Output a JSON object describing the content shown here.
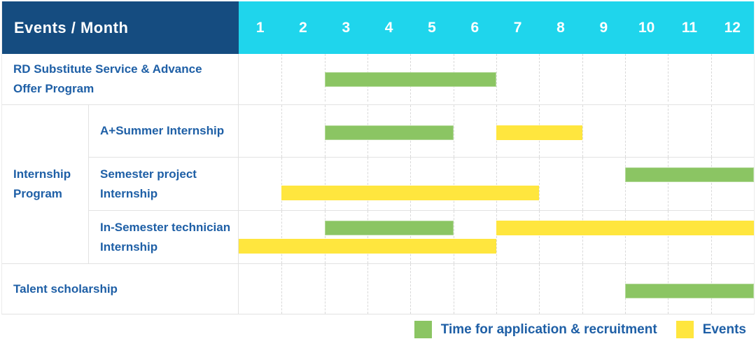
{
  "chart_data": {
    "type": "gantt",
    "title": "Events / Month",
    "months": [
      "1",
      "2",
      "3",
      "4",
      "5",
      "6",
      "7",
      "8",
      "9",
      "10",
      "11",
      "12"
    ],
    "colors": {
      "header_navy": "#154C80",
      "header_cyan": "#1FD5EC",
      "label_text_blue": "#1E5FA6",
      "application_green": "#8BC563",
      "events_yellow": "#FFE63E"
    },
    "legend": [
      {
        "key": "application",
        "label": "Time for application & recruitment",
        "color": "#8BC563"
      },
      {
        "key": "events",
        "label": "Events",
        "color": "#FFE63E"
      }
    ],
    "rows": [
      {
        "label": "RD Substitute Service & Advance Offer Program",
        "group": null,
        "bars": [
          {
            "type": "application",
            "start": 3,
            "end": 6,
            "lane": "mid"
          }
        ]
      },
      {
        "label": "A+Summer Internship",
        "group": "Internship Program",
        "bars": [
          {
            "type": "application",
            "start": 3,
            "end": 5,
            "lane": "mid"
          },
          {
            "type": "events",
            "start": 7,
            "end": 8,
            "lane": "mid"
          }
        ]
      },
      {
        "label": "Semester project Internship",
        "group": "Internship Program",
        "bars": [
          {
            "type": "application",
            "start": 10,
            "end": 12,
            "lane": "top"
          },
          {
            "type": "events",
            "start": 2,
            "end": 7,
            "lane": "bottom"
          }
        ]
      },
      {
        "label": "In-Semester technician Internship",
        "group": "Internship Program",
        "bars": [
          {
            "type": "application",
            "start": 3,
            "end": 5,
            "lane": "top"
          },
          {
            "type": "events",
            "start": 7,
            "end": 12,
            "lane": "top"
          },
          {
            "type": "events",
            "start": 1,
            "end": 6,
            "lane": "bottom"
          }
        ]
      },
      {
        "label": "Talent scholarship",
        "group": null,
        "bars": [
          {
            "type": "application",
            "start": 10,
            "end": 12,
            "lane": "mid"
          }
        ]
      }
    ]
  }
}
